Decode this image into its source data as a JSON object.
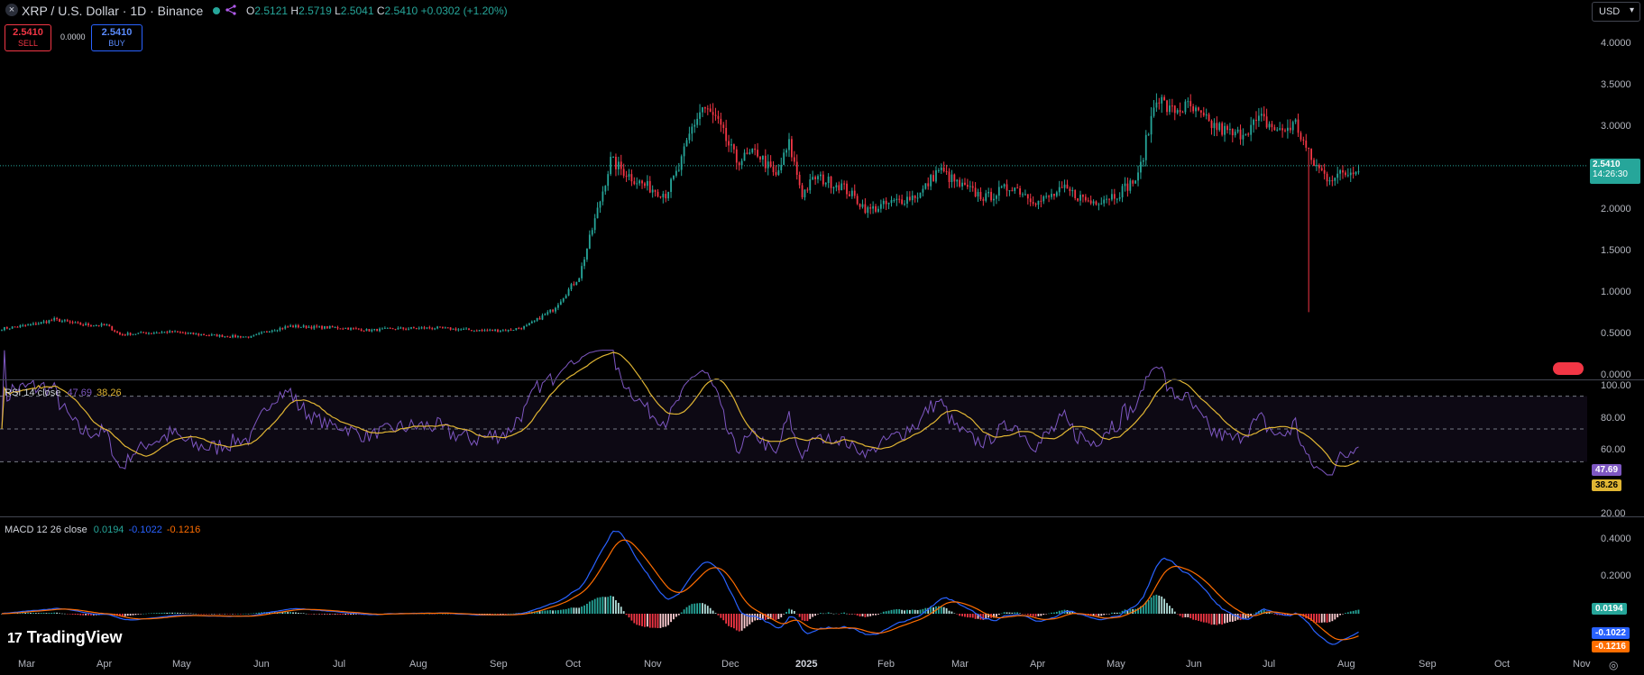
{
  "header": {
    "close_icon": "×",
    "symbol_title": "XRP / U.S. Dollar · 1D · Binance",
    "ohlc": {
      "o_label": "O",
      "o_value": "2.5121",
      "h_label": "H",
      "h_value": "2.5719",
      "l_label": "L",
      "l_value": "2.5041",
      "c_label": "C",
      "c_value": "2.5410",
      "change": "+0.0302 (+1.20%)"
    },
    "sell": {
      "price": "2.5410",
      "label": "SELL"
    },
    "spread": "0.0000",
    "buy": {
      "price": "2.5410",
      "label": "BUY"
    },
    "currency": "USD",
    "currency_icon": "▾"
  },
  "price_axis": [
    "4.0000",
    "3.5000",
    "3.0000",
    "2.5000",
    "2.0000",
    "1.5000",
    "1.0000",
    "0.5000",
    "0.0000"
  ],
  "price_tag": {
    "price": "2.5410",
    "countdown": "14:26:30"
  },
  "rsi": {
    "title": "RSI 14 close",
    "rsi_value": "47.69",
    "ma_value": "38.26",
    "axis": [
      "100.00",
      "80.00",
      "60.00",
      "40.00",
      "20.00"
    ]
  },
  "macd": {
    "title": "MACD 12 26 close",
    "hist_value": "0.0194",
    "macd_value": "-0.1022",
    "signal_value": "-0.1216",
    "axis": [
      "0.4000",
      "0.2000"
    ]
  },
  "time_axis": [
    "Mar",
    "Apr",
    "May",
    "Jun",
    "Jul",
    "Aug",
    "Sep",
    "Oct",
    "Nov",
    "Dec",
    "2025",
    "Feb",
    "Mar",
    "Apr",
    "May",
    "Jun",
    "Jul",
    "Aug",
    "Sep",
    "Oct",
    "Nov"
  ],
  "branding": {
    "logo_mark": "17",
    "logo_text": "TradingView"
  },
  "footer": {
    "gear_icon": "◎"
  },
  "colors": {
    "up": "#26a69a",
    "down": "#f23645",
    "rsi": "#7e57c2",
    "rsi_ma": "#e0b533",
    "macd": "#2962ff",
    "signal": "#ff6d00"
  },
  "chart_data": {
    "type": "candlestick",
    "price_range": [
      0,
      4
    ],
    "series": [
      {
        "name": "XRP / U.S. Dollar",
        "anchors": [
          [
            0,
            0.57
          ],
          [
            12,
            0.62
          ],
          [
            20,
            0.68
          ],
          [
            30,
            0.62
          ],
          [
            40,
            0.61
          ],
          [
            45,
            0.5
          ],
          [
            55,
            0.52
          ],
          [
            65,
            0.53
          ],
          [
            75,
            0.5
          ],
          [
            85,
            0.48
          ],
          [
            95,
            0.47
          ],
          [
            102,
            0.55
          ],
          [
            110,
            0.6
          ],
          [
            118,
            0.59
          ],
          [
            130,
            0.58
          ],
          [
            140,
            0.55
          ],
          [
            150,
            0.57
          ],
          [
            165,
            0.58
          ],
          [
            180,
            0.55
          ],
          [
            193,
            0.55
          ],
          [
            200,
            0.6
          ],
          [
            210,
            0.8
          ],
          [
            220,
            1.2
          ],
          [
            227,
            2.0
          ],
          [
            232,
            2.6
          ],
          [
            240,
            2.4
          ],
          [
            245,
            2.3
          ],
          [
            253,
            2.2
          ],
          [
            258,
            2.5
          ],
          [
            263,
            3.0
          ],
          [
            267,
            3.25
          ],
          [
            272,
            3.1
          ],
          [
            280,
            2.6
          ],
          [
            288,
            2.7
          ],
          [
            295,
            2.4
          ],
          [
            300,
            2.8
          ],
          [
            305,
            2.2
          ],
          [
            310,
            2.4
          ],
          [
            320,
            2.3
          ],
          [
            330,
            2.0
          ],
          [
            340,
            2.1
          ],
          [
            350,
            2.2
          ],
          [
            357,
            2.5
          ],
          [
            365,
            2.3
          ],
          [
            375,
            2.15
          ],
          [
            385,
            2.3
          ],
          [
            395,
            2.1
          ],
          [
            405,
            2.25
          ],
          [
            415,
            2.1
          ],
          [
            425,
            2.2
          ],
          [
            433,
            2.4
          ],
          [
            440,
            3.4
          ],
          [
            445,
            3.2
          ],
          [
            452,
            3.25
          ],
          [
            460,
            3.05
          ],
          [
            470,
            2.9
          ],
          [
            480,
            3.1
          ],
          [
            487,
            2.95
          ],
          [
            493,
            3.05
          ],
          [
            499,
            2.6
          ],
          [
            505,
            2.4
          ],
          [
            513,
            2.45
          ],
          [
            517,
            2.54
          ]
        ]
      },
      {
        "name": "RSI 14",
        "last": 47.69
      },
      {
        "name": "RSI MA",
        "last": 38.26
      },
      {
        "name": "MACD 12 26",
        "last": -0.1022
      },
      {
        "name": "Signal",
        "last": -0.1216
      },
      {
        "name": "Histogram",
        "last": 0.0194
      }
    ]
  }
}
